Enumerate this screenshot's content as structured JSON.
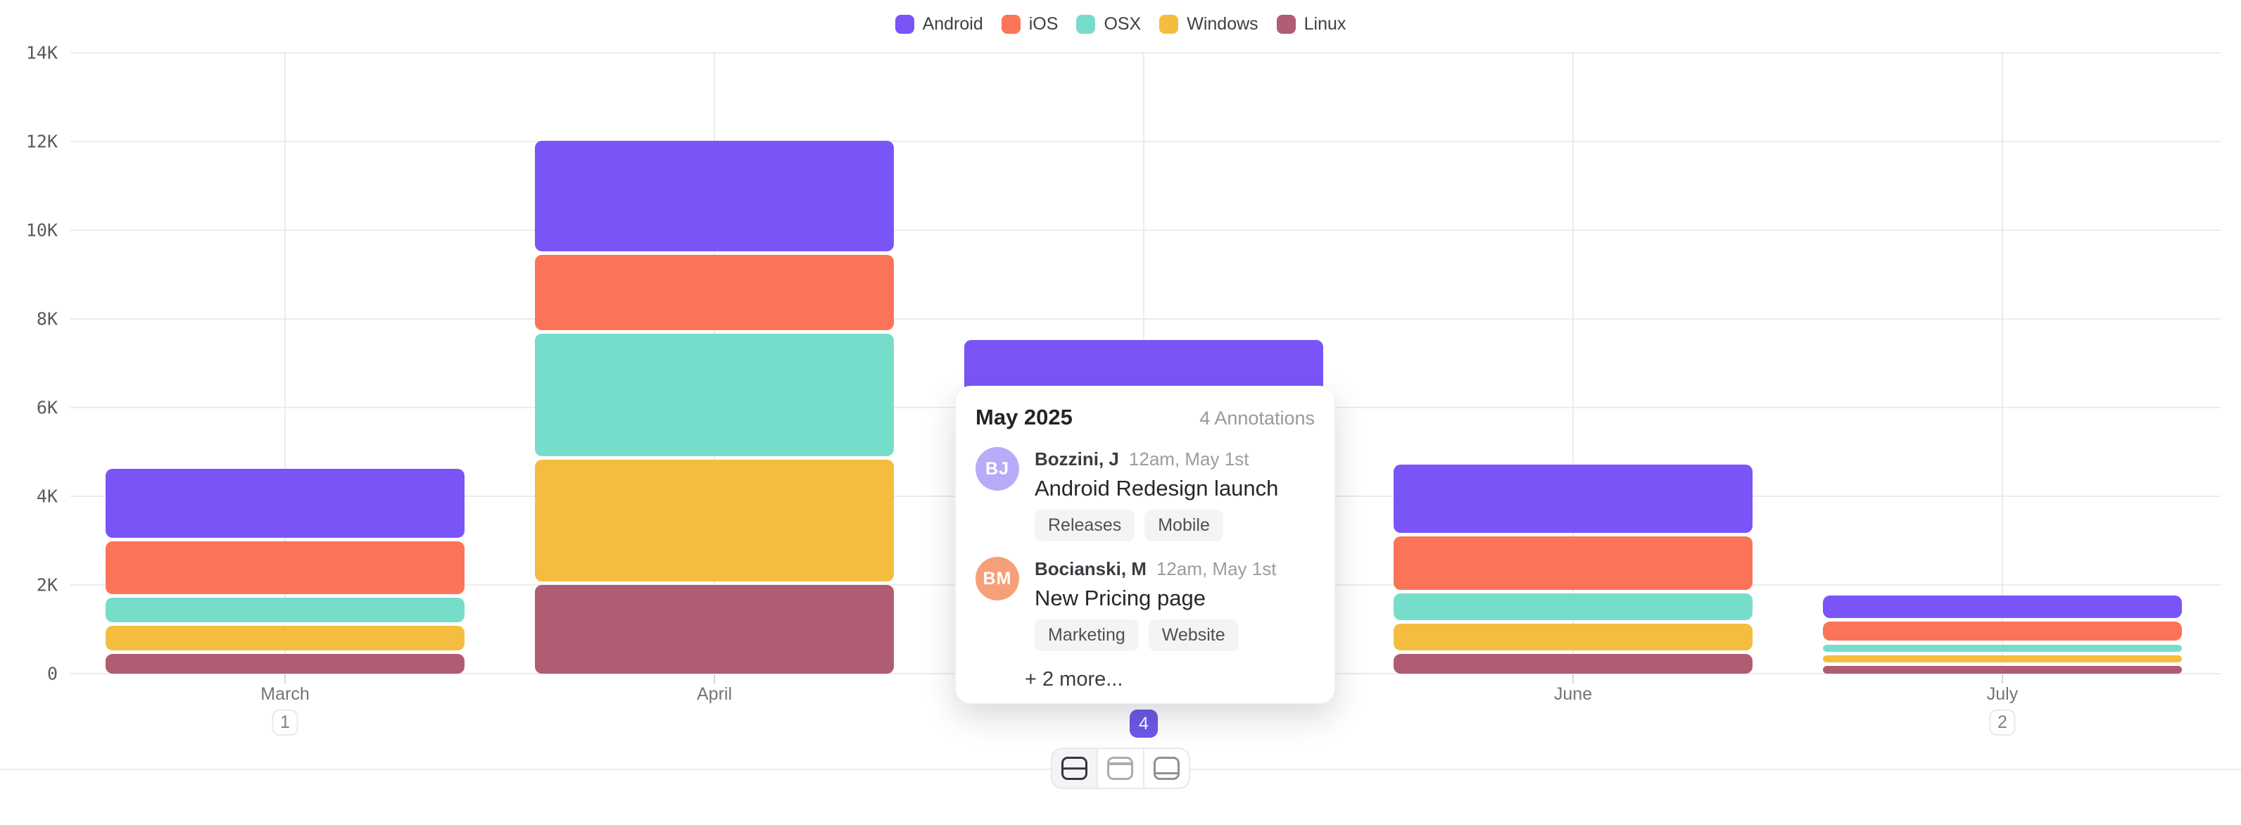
{
  "colors": {
    "accent": "#6c59e8",
    "grid": "#ececee",
    "axis_text": "#74757b",
    "legend_text": "#3f4046"
  },
  "legend": {
    "items": [
      {
        "label": "Android",
        "color": "#7b54f8"
      },
      {
        "label": "iOS",
        "color": "#fc7458"
      },
      {
        "label": "OSX",
        "color": "#77ddcb"
      },
      {
        "label": "Windows",
        "color": "#f4bd40"
      },
      {
        "label": "Linux",
        "color": "#b05c72"
      }
    ]
  },
  "chart_data": {
    "type": "bar",
    "stacked": true,
    "title": "",
    "xlabel": "",
    "ylabel": "",
    "categories": [
      "March",
      "April",
      "May",
      "June",
      "July"
    ],
    "series": [
      {
        "name": "Android",
        "color": "#7b54f8",
        "values": [
          1550,
          2500,
          2000,
          1550,
          520
        ]
      },
      {
        "name": "iOS",
        "color": "#fc7458",
        "values": [
          1200,
          1700,
          1600,
          1200,
          430
        ]
      },
      {
        "name": "OSX",
        "color": "#77ddcb",
        "values": [
          550,
          2750,
          1400,
          600,
          160
        ]
      },
      {
        "name": "Windows",
        "color": "#f4bd40",
        "values": [
          550,
          2750,
          1300,
          600,
          170
        ]
      },
      {
        "name": "Linux",
        "color": "#b05c72",
        "values": [
          450,
          2000,
          900,
          450,
          170
        ]
      }
    ],
    "ylim": [
      0,
      14000
    ],
    "y_tick_labels": [
      "0",
      "2K",
      "4K",
      "6K",
      "8K",
      "10K",
      "12K",
      "14K"
    ],
    "grid": true,
    "legend_position": "top",
    "annotation_badges": [
      {
        "month_index": 0,
        "label": "1",
        "selected": false
      },
      {
        "month_index": 2,
        "label": "4",
        "selected": true
      },
      {
        "month_index": 4,
        "label": "2",
        "selected": false
      }
    ]
  },
  "popup": {
    "title": "May 2025",
    "count_label": "4 Annotations",
    "annotations": [
      {
        "initials": "BJ",
        "avatar_color": "#b7acf7",
        "author": "Bozzini, J",
        "timestamp": "12am, May 1st",
        "text": "Android Redesign launch",
        "tags": [
          "Releases",
          "Mobile"
        ]
      },
      {
        "initials": "BM",
        "avatar_color": "#f5a078",
        "author": "Bocianski, M",
        "timestamp": "12am, May 1st",
        "text": "New Pricing page",
        "tags": [
          "Marketing",
          "Website"
        ]
      }
    ],
    "more_label": "+ 2 more..."
  },
  "toolbar": {
    "buttons": [
      {
        "icon": "layout-split-horizontal-icon",
        "active": true
      },
      {
        "icon": "layout-header-top-icon",
        "active": false
      },
      {
        "icon": "layout-footer-bottom-icon",
        "active": false
      }
    ]
  }
}
